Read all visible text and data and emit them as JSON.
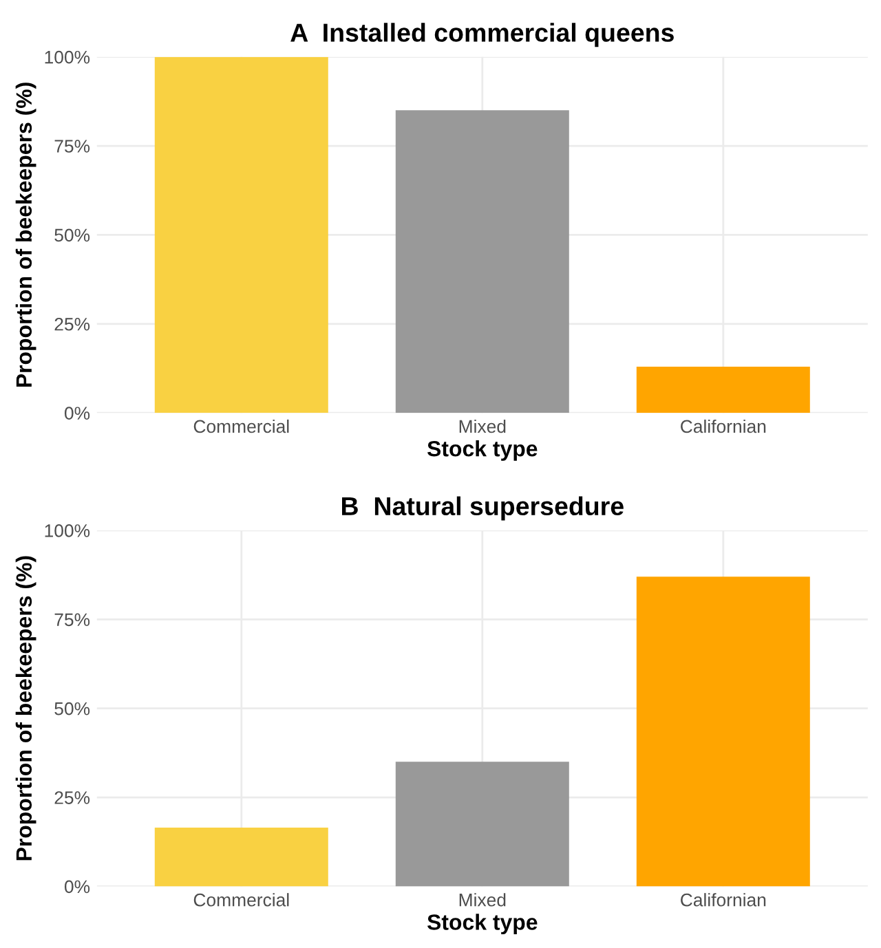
{
  "chart_data": [
    {
      "type": "bar",
      "title": "A  Installed commercial queens",
      "xlabel": "Stock type",
      "ylabel": "Proportion of beekeepers (%)",
      "categories": [
        "Commercial",
        "Mixed",
        "Californian"
      ],
      "values": [
        100,
        85,
        13
      ],
      "colors": [
        "#f9d142",
        "#999999",
        "#ffa500"
      ],
      "ylim": [
        0,
        100
      ],
      "yticks": [
        {
          "value": 0,
          "label": "0%"
        },
        {
          "value": 25,
          "label": "25%"
        },
        {
          "value": 50,
          "label": "50%"
        },
        {
          "value": 75,
          "label": "75%"
        },
        {
          "value": 100,
          "label": "100%"
        }
      ],
      "grid": true
    },
    {
      "type": "bar",
      "title": "B  Natural supersedure",
      "xlabel": "Stock type",
      "ylabel": "Proportion of beekeepers (%)",
      "categories": [
        "Commercial",
        "Mixed",
        "Californian"
      ],
      "values": [
        16.5,
        35,
        87
      ],
      "colors": [
        "#f9d142",
        "#999999",
        "#ffa500"
      ],
      "ylim": [
        0,
        100
      ],
      "yticks": [
        {
          "value": 0,
          "label": "0%"
        },
        {
          "value": 25,
          "label": "25%"
        },
        {
          "value": 50,
          "label": "50%"
        },
        {
          "value": 75,
          "label": "75%"
        },
        {
          "value": 100,
          "label": "100%"
        }
      ],
      "grid": true
    }
  ]
}
